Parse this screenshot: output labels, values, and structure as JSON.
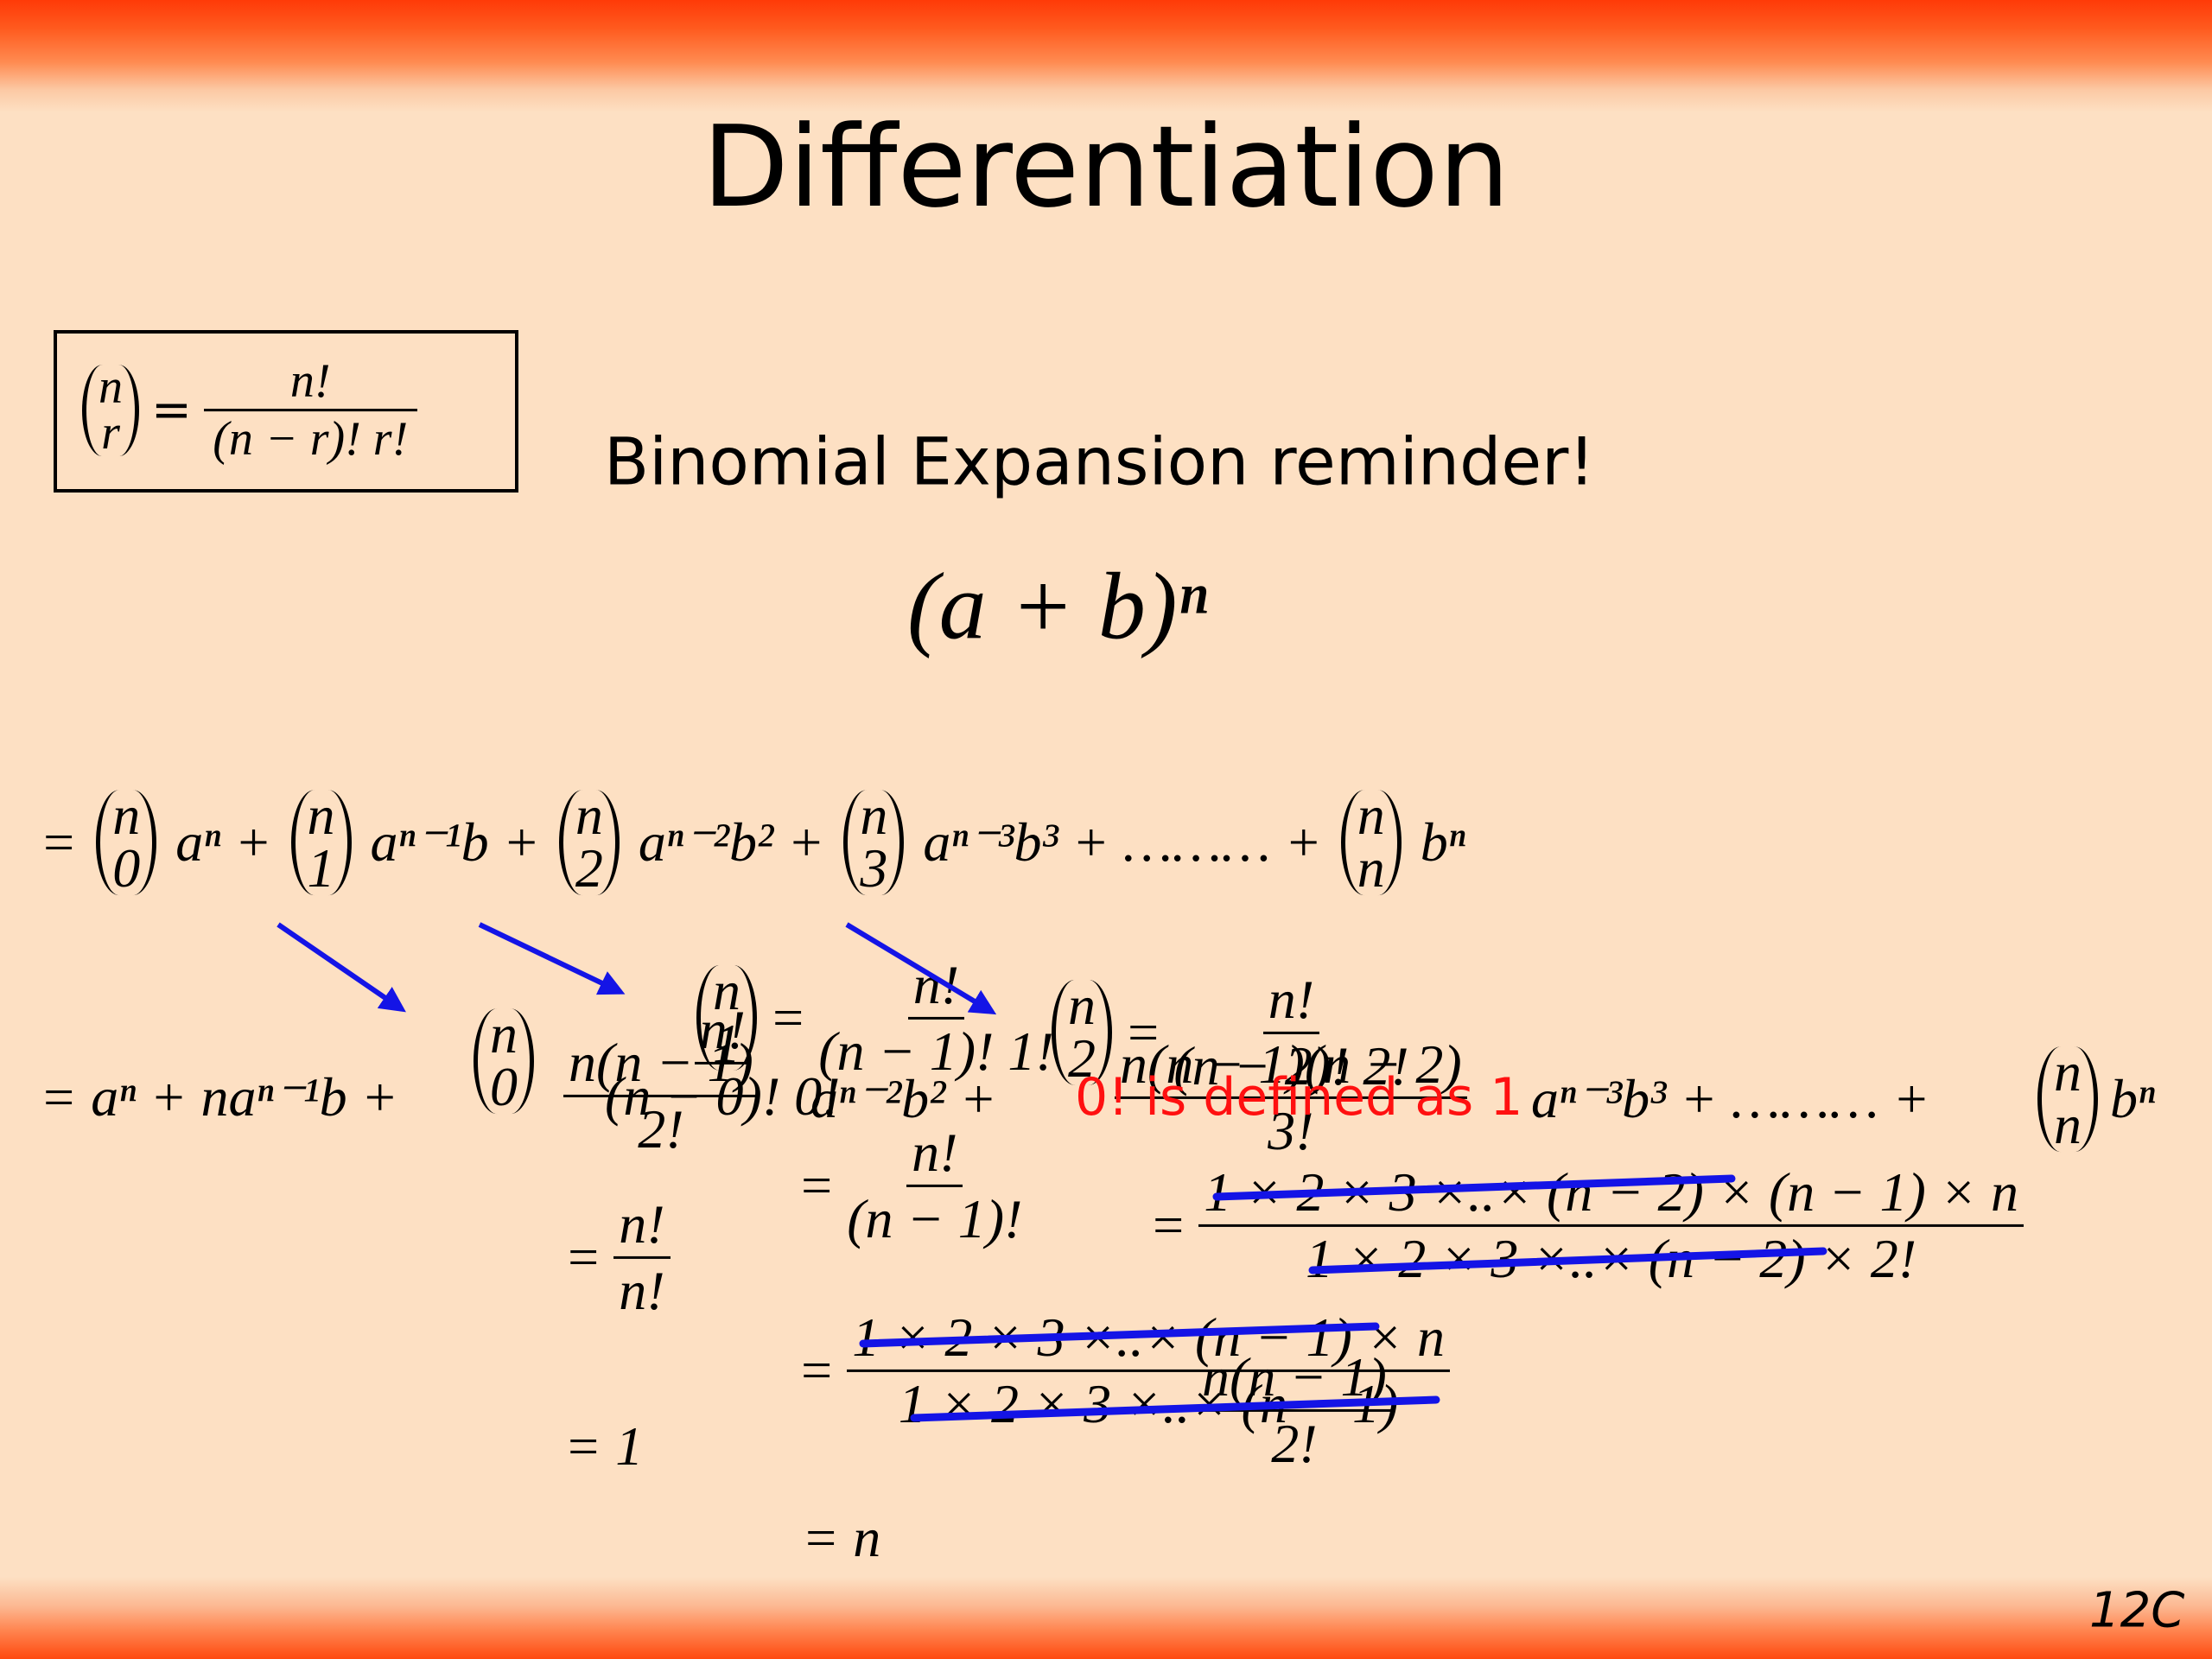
{
  "title": "Differentiation",
  "subtitle": "Binomial Expansion reminder!",
  "slide_number": "12C",
  "definition": {
    "binom": {
      "top": "n",
      "bottom": "r"
    },
    "equals": "=",
    "numerator": "n!",
    "denominator": "(n − r)! r!"
  },
  "expression": "(a + b)ⁿ",
  "expansion": [
    "=",
    {
      "top": "n",
      "bottom": "0"
    },
    "aⁿ +",
    {
      "top": "n",
      "bottom": "1"
    },
    "aⁿ⁻¹b +",
    {
      "top": "n",
      "bottom": "2"
    },
    "aⁿ⁻²b² +",
    {
      "top": "n",
      "bottom": "3"
    },
    "aⁿ⁻³b³ + ……… +",
    {
      "top": "n",
      "bottom": "n"
    },
    "bⁿ"
  ],
  "simplified": {
    "start": "= aⁿ + naⁿ⁻¹b +",
    "coef2": {
      "numerator": "n(n − 1)",
      "denominator": "2!"
    },
    "term3": "aⁿ⁻²b² +",
    "coef3": {
      "numerator": "n(n − 1)(n − 2)",
      "denominator": "3!"
    },
    "term4": "aⁿ⁻³b³ + ……… +",
    "last_binom": {
      "top": "n",
      "bottom": "n"
    },
    "last": "bⁿ"
  },
  "note": "0! is defined as 1",
  "working_0": {
    "binom": {
      "top": "n",
      "bottom": "0"
    },
    "fraction": {
      "numerator": "n!",
      "denominator": "(n − 0)! 0!"
    },
    "step1": {
      "equals": "=",
      "numerator": "n!",
      "denominator": "n!"
    },
    "result": "= 1"
  },
  "working_1": {
    "binom": {
      "top": "n",
      "bottom": "1"
    },
    "equals": "=",
    "fraction": {
      "numerator": "n!",
      "denominator": "(n − 1)! 1!"
    },
    "step1": {
      "equals": "=",
      "numerator": "n!",
      "denominator": "(n − 1)!"
    },
    "step2": {
      "equals": "=",
      "numerator": "1 × 2 × 3 ×..× (n − 1) × n",
      "denominator": "1 × 2 × 3 ×..× (n − 1)"
    },
    "result": "= n"
  },
  "working_2": {
    "binom": {
      "top": "n",
      "bottom": "2"
    },
    "equals": "=",
    "fraction": {
      "numerator": "n!",
      "denominator": "(n − 2)! 2!"
    },
    "step1": {
      "equals": "=",
      "numerator": "1 × 2 × 3 ×..× (n − 2) × (n − 1) × n",
      "denominator": "1 × 2 × 3 ×..× (n − 2) × 2!"
    },
    "result": {
      "numerator": "n(n − 1)",
      "denominator": "2!"
    }
  }
}
